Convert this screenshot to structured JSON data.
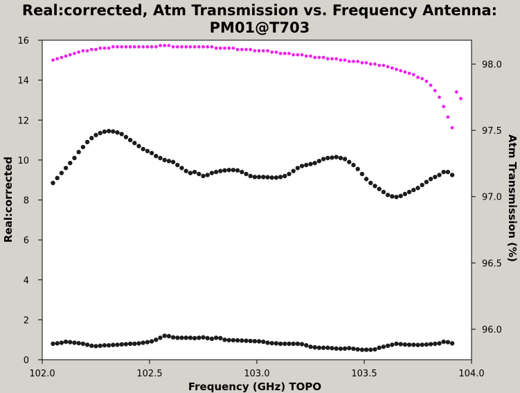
{
  "chart_data": {
    "type": "scatter",
    "title_line1": "Real:corrected, Atm Transmission vs. Frequency Antenna:",
    "title_line2": "PM01@T703",
    "xlabel": "Frequency (GHz) TOPO",
    "ylabel": "Real:corrected",
    "y2label": "Atm Transmission (%)",
    "xlim": [
      102.0,
      104.0
    ],
    "ylim": [
      0,
      16
    ],
    "y2lim": [
      95.77,
      98.18
    ],
    "xticks": [
      102.0,
      102.5,
      103.0,
      103.5,
      104.0
    ],
    "xtick_labels": [
      "102.0",
      "102.5",
      "103.0",
      "103.5",
      "104.0"
    ],
    "yticks": [
      0,
      2,
      4,
      6,
      8,
      10,
      12,
      14,
      16
    ],
    "ytick_labels": [
      "0",
      "2",
      "4",
      "6",
      "8",
      "10",
      "12",
      "14",
      "16"
    ],
    "y2ticks": [
      96.0,
      96.5,
      97.0,
      97.5,
      98.0
    ],
    "y2tick_labels": [
      "96.0",
      "96.5",
      "97.0",
      "97.5",
      "98.0"
    ],
    "colors": {
      "data": "#1c1c1c",
      "atm": "#ee22ee",
      "background": "#d6d2cc",
      "plot": "#ffffff"
    },
    "series": [
      {
        "axis": "left",
        "color": "#1c1c1c",
        "points": [
          [
            102.05,
            8.85
          ],
          [
            102.07,
            9.1
          ],
          [
            102.09,
            9.35
          ],
          [
            102.11,
            9.6
          ],
          [
            102.13,
            9.85
          ],
          [
            102.15,
            10.1
          ],
          [
            102.17,
            10.4
          ],
          [
            102.19,
            10.65
          ],
          [
            102.21,
            10.9
          ],
          [
            102.23,
            11.1
          ],
          [
            102.25,
            11.25
          ],
          [
            102.27,
            11.35
          ],
          [
            102.29,
            11.42
          ],
          [
            102.31,
            11.45
          ],
          [
            102.33,
            11.43
          ],
          [
            102.35,
            11.38
          ],
          [
            102.37,
            11.3
          ],
          [
            102.39,
            11.15
          ],
          [
            102.41,
            11.0
          ],
          [
            102.43,
            10.85
          ],
          [
            102.45,
            10.7
          ],
          [
            102.47,
            10.55
          ],
          [
            102.49,
            10.45
          ],
          [
            102.51,
            10.35
          ],
          [
            102.53,
            10.2
          ],
          [
            102.55,
            10.1
          ],
          [
            102.57,
            10.0
          ],
          [
            102.59,
            9.95
          ],
          [
            102.61,
            9.9
          ],
          [
            102.63,
            9.75
          ],
          [
            102.65,
            9.6
          ],
          [
            102.67,
            9.45
          ],
          [
            102.69,
            9.35
          ],
          [
            102.71,
            9.4
          ],
          [
            102.73,
            9.3
          ],
          [
            102.75,
            9.2
          ],
          [
            102.77,
            9.25
          ],
          [
            102.79,
            9.35
          ],
          [
            102.81,
            9.4
          ],
          [
            102.83,
            9.45
          ],
          [
            102.85,
            9.48
          ],
          [
            102.87,
            9.5
          ],
          [
            102.89,
            9.5
          ],
          [
            102.91,
            9.48
          ],
          [
            102.93,
            9.4
          ],
          [
            102.95,
            9.3
          ],
          [
            102.97,
            9.2
          ],
          [
            102.99,
            9.15
          ],
          [
            103.01,
            9.15
          ],
          [
            103.03,
            9.15
          ],
          [
            103.05,
            9.14
          ],
          [
            103.07,
            9.12
          ],
          [
            103.09,
            9.12
          ],
          [
            103.11,
            9.15
          ],
          [
            103.13,
            9.2
          ],
          [
            103.15,
            9.3
          ],
          [
            103.17,
            9.45
          ],
          [
            103.19,
            9.6
          ],
          [
            103.21,
            9.7
          ],
          [
            103.23,
            9.75
          ],
          [
            103.25,
            9.8
          ],
          [
            103.27,
            9.85
          ],
          [
            103.29,
            9.95
          ],
          [
            103.31,
            10.05
          ],
          [
            103.33,
            10.1
          ],
          [
            103.35,
            10.12
          ],
          [
            103.37,
            10.15
          ],
          [
            103.39,
            10.1
          ],
          [
            103.41,
            10.05
          ],
          [
            103.43,
            9.9
          ],
          [
            103.45,
            9.75
          ],
          [
            103.47,
            9.55
          ],
          [
            103.49,
            9.3
          ],
          [
            103.51,
            9.05
          ],
          [
            103.53,
            8.85
          ],
          [
            103.55,
            8.7
          ],
          [
            103.57,
            8.55
          ],
          [
            103.59,
            8.4
          ],
          [
            103.61,
            8.25
          ],
          [
            103.63,
            8.18
          ],
          [
            103.65,
            8.15
          ],
          [
            103.67,
            8.2
          ],
          [
            103.69,
            8.3
          ],
          [
            103.71,
            8.4
          ],
          [
            103.73,
            8.5
          ],
          [
            103.75,
            8.6
          ],
          [
            103.77,
            8.75
          ],
          [
            103.79,
            8.9
          ],
          [
            103.81,
            9.05
          ],
          [
            103.83,
            9.15
          ],
          [
            103.85,
            9.25
          ],
          [
            103.87,
            9.4
          ],
          [
            103.89,
            9.4
          ],
          [
            103.91,
            9.25
          ],
          [
            102.05,
            0.8
          ],
          [
            102.07,
            0.82
          ],
          [
            102.09,
            0.85
          ],
          [
            102.11,
            0.9
          ],
          [
            102.13,
            0.88
          ],
          [
            102.15,
            0.85
          ],
          [
            102.17,
            0.83
          ],
          [
            102.19,
            0.8
          ],
          [
            102.21,
            0.75
          ],
          [
            102.23,
            0.7
          ],
          [
            102.25,
            0.68
          ],
          [
            102.27,
            0.7
          ],
          [
            102.29,
            0.72
          ],
          [
            102.31,
            0.72
          ],
          [
            102.33,
            0.74
          ],
          [
            102.35,
            0.75
          ],
          [
            102.37,
            0.77
          ],
          [
            102.39,
            0.78
          ],
          [
            102.41,
            0.8
          ],
          [
            102.43,
            0.8
          ],
          [
            102.45,
            0.82
          ],
          [
            102.47,
            0.85
          ],
          [
            102.49,
            0.88
          ],
          [
            102.51,
            0.92
          ],
          [
            102.53,
            1.0
          ],
          [
            102.55,
            1.1
          ],
          [
            102.57,
            1.2
          ],
          [
            102.59,
            1.18
          ],
          [
            102.61,
            1.12
          ],
          [
            102.63,
            1.1
          ],
          [
            102.65,
            1.1
          ],
          [
            102.67,
            1.1
          ],
          [
            102.69,
            1.1
          ],
          [
            102.71,
            1.08
          ],
          [
            102.73,
            1.1
          ],
          [
            102.75,
            1.12
          ],
          [
            102.77,
            1.08
          ],
          [
            102.79,
            1.05
          ],
          [
            102.81,
            1.1
          ],
          [
            102.83,
            1.08
          ],
          [
            102.85,
            1.0
          ],
          [
            102.87,
            0.98
          ],
          [
            102.89,
            0.98
          ],
          [
            102.91,
            0.97
          ],
          [
            102.93,
            0.96
          ],
          [
            102.95,
            0.95
          ],
          [
            102.97,
            0.94
          ],
          [
            102.99,
            0.93
          ],
          [
            103.01,
            0.92
          ],
          [
            103.03,
            0.9
          ],
          [
            103.05,
            0.85
          ],
          [
            103.07,
            0.83
          ],
          [
            103.09,
            0.82
          ],
          [
            103.11,
            0.8
          ],
          [
            103.13,
            0.8
          ],
          [
            103.15,
            0.8
          ],
          [
            103.17,
            0.8
          ],
          [
            103.19,
            0.8
          ],
          [
            103.21,
            0.78
          ],
          [
            103.23,
            0.72
          ],
          [
            103.25,
            0.65
          ],
          [
            103.27,
            0.62
          ],
          [
            103.29,
            0.6
          ],
          [
            103.31,
            0.6
          ],
          [
            103.33,
            0.6
          ],
          [
            103.35,
            0.58
          ],
          [
            103.37,
            0.56
          ],
          [
            103.39,
            0.55
          ],
          [
            103.41,
            0.56
          ],
          [
            103.43,
            0.58
          ],
          [
            103.45,
            0.55
          ],
          [
            103.47,
            0.52
          ],
          [
            103.49,
            0.5
          ],
          [
            103.51,
            0.5
          ],
          [
            103.53,
            0.5
          ],
          [
            103.55,
            0.52
          ],
          [
            103.57,
            0.6
          ],
          [
            103.59,
            0.65
          ],
          [
            103.61,
            0.7
          ],
          [
            103.63,
            0.75
          ],
          [
            103.65,
            0.8
          ],
          [
            103.67,
            0.78
          ],
          [
            103.69,
            0.76
          ],
          [
            103.71,
            0.75
          ],
          [
            103.73,
            0.75
          ],
          [
            103.75,
            0.74
          ],
          [
            103.77,
            0.75
          ],
          [
            103.79,
            0.76
          ],
          [
            103.81,
            0.78
          ],
          [
            103.83,
            0.8
          ],
          [
            103.85,
            0.82
          ],
          [
            103.87,
            0.9
          ],
          [
            103.89,
            0.88
          ],
          [
            103.91,
            0.82
          ]
        ]
      },
      {
        "axis": "right",
        "color": "#ee22ee",
        "points": [
          [
            102.05,
            98.03
          ],
          [
            102.07,
            98.04
          ],
          [
            102.09,
            98.05
          ],
          [
            102.11,
            98.06
          ],
          [
            102.13,
            98.07
          ],
          [
            102.15,
            98.08
          ],
          [
            102.17,
            98.09
          ],
          [
            102.19,
            98.1
          ],
          [
            102.21,
            98.1
          ],
          [
            102.23,
            98.11
          ],
          [
            102.25,
            98.11
          ],
          [
            102.27,
            98.12
          ],
          [
            102.29,
            98.12
          ],
          [
            102.31,
            98.12
          ],
          [
            102.33,
            98.13
          ],
          [
            102.35,
            98.13
          ],
          [
            102.37,
            98.13
          ],
          [
            102.39,
            98.13
          ],
          [
            102.41,
            98.13
          ],
          [
            102.43,
            98.13
          ],
          [
            102.45,
            98.13
          ],
          [
            102.47,
            98.13
          ],
          [
            102.49,
            98.13
          ],
          [
            102.51,
            98.13
          ],
          [
            102.53,
            98.13
          ],
          [
            102.55,
            98.14
          ],
          [
            102.57,
            98.14
          ],
          [
            102.59,
            98.14
          ],
          [
            102.61,
            98.13
          ],
          [
            102.63,
            98.13
          ],
          [
            102.65,
            98.13
          ],
          [
            102.67,
            98.13
          ],
          [
            102.69,
            98.13
          ],
          [
            102.71,
            98.13
          ],
          [
            102.73,
            98.13
          ],
          [
            102.75,
            98.13
          ],
          [
            102.77,
            98.13
          ],
          [
            102.79,
            98.13
          ],
          [
            102.81,
            98.12
          ],
          [
            102.83,
            98.12
          ],
          [
            102.85,
            98.12
          ],
          [
            102.87,
            98.12
          ],
          [
            102.89,
            98.12
          ],
          [
            102.91,
            98.11
          ],
          [
            102.93,
            98.11
          ],
          [
            102.95,
            98.11
          ],
          [
            102.97,
            98.11
          ],
          [
            102.99,
            98.1
          ],
          [
            103.01,
            98.1
          ],
          [
            103.03,
            98.1
          ],
          [
            103.05,
            98.1
          ],
          [
            103.07,
            98.09
          ],
          [
            103.09,
            98.09
          ],
          [
            103.11,
            98.08
          ],
          [
            103.13,
            98.08
          ],
          [
            103.15,
            98.08
          ],
          [
            103.17,
            98.07
          ],
          [
            103.19,
            98.07
          ],
          [
            103.21,
            98.07
          ],
          [
            103.23,
            98.06
          ],
          [
            103.25,
            98.06
          ],
          [
            103.27,
            98.05
          ],
          [
            103.29,
            98.05
          ],
          [
            103.31,
            98.05
          ],
          [
            103.33,
            98.04
          ],
          [
            103.35,
            98.04
          ],
          [
            103.37,
            98.04
          ],
          [
            103.39,
            98.03
          ],
          [
            103.41,
            98.03
          ],
          [
            103.43,
            98.02
          ],
          [
            103.45,
            98.02
          ],
          [
            103.47,
            98.02
          ],
          [
            103.49,
            98.01
          ],
          [
            103.51,
            98.01
          ],
          [
            103.53,
            98.0
          ],
          [
            103.55,
            98.0
          ],
          [
            103.57,
            97.99
          ],
          [
            103.59,
            97.99
          ],
          [
            103.61,
            97.98
          ],
          [
            103.63,
            97.97
          ],
          [
            103.65,
            97.96
          ],
          [
            103.67,
            97.95
          ],
          [
            103.69,
            97.94
          ],
          [
            103.71,
            97.93
          ],
          [
            103.73,
            97.92
          ],
          [
            103.75,
            97.9
          ],
          [
            103.77,
            97.89
          ],
          [
            103.79,
            97.87
          ],
          [
            103.81,
            97.84
          ],
          [
            103.83,
            97.8
          ],
          [
            103.85,
            97.75
          ],
          [
            103.87,
            97.68
          ],
          [
            103.89,
            97.6
          ],
          [
            103.91,
            97.52
          ],
          [
            103.93,
            97.79
          ],
          [
            103.95,
            97.74
          ]
        ]
      }
    ]
  }
}
